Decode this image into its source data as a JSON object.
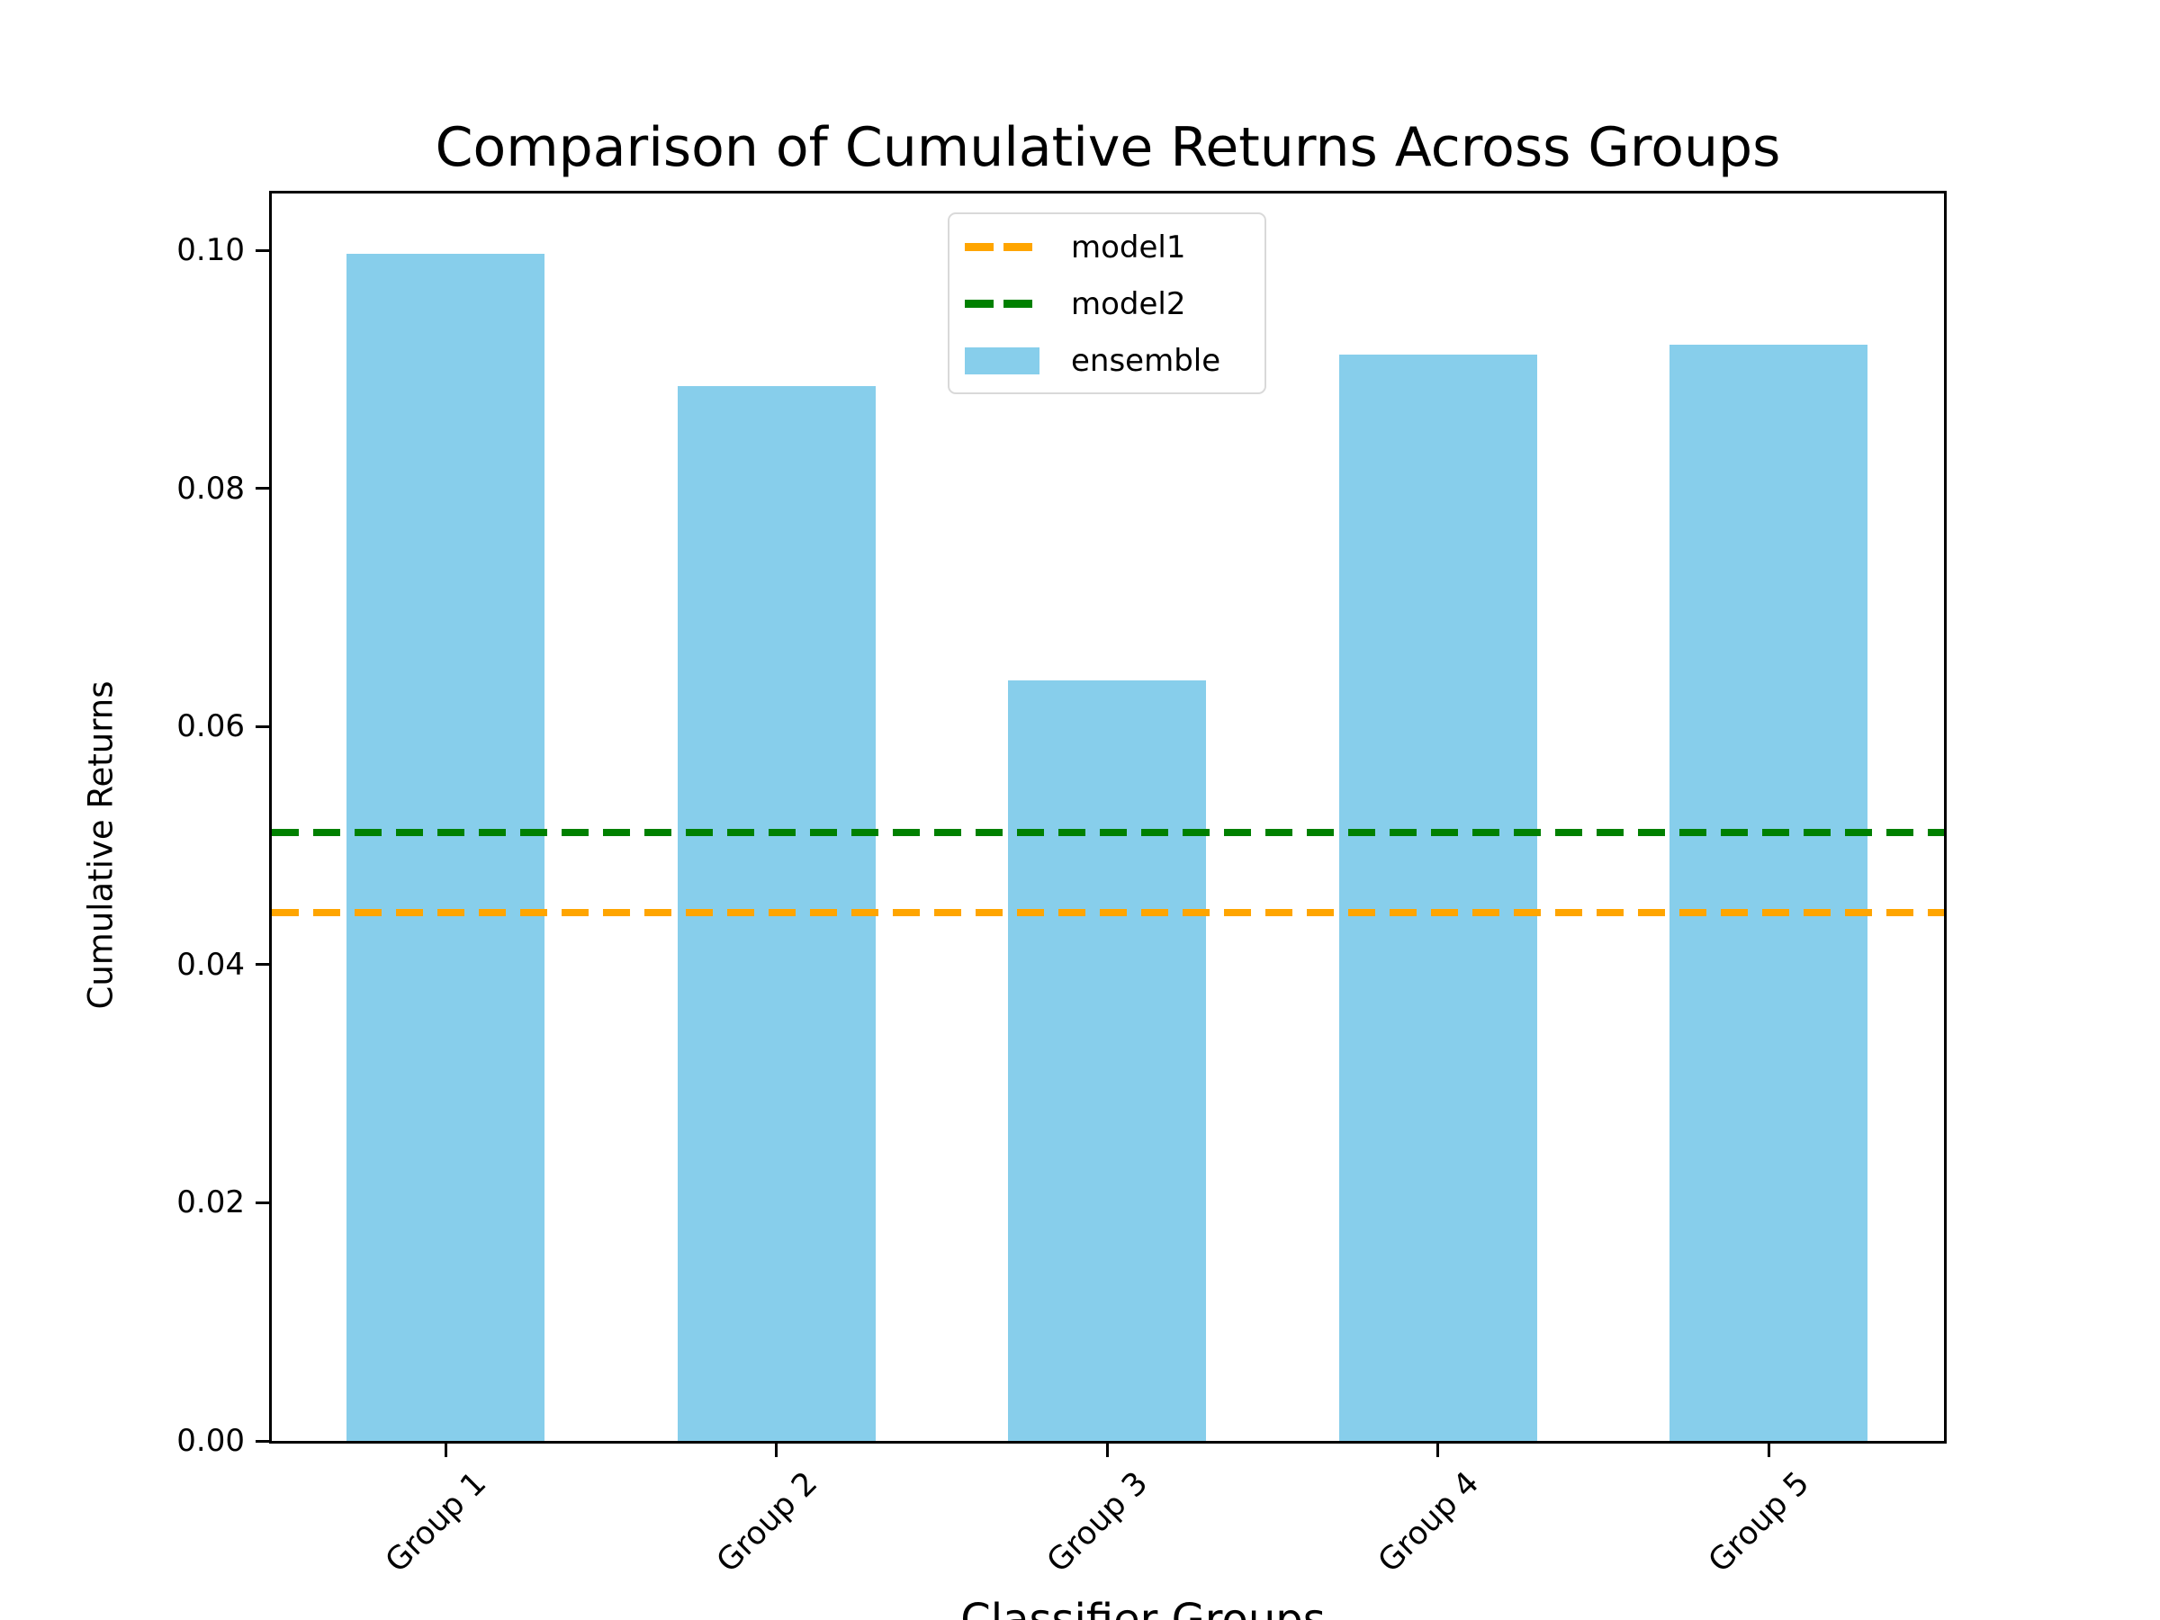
{
  "chart_data": {
    "type": "bar",
    "title": "Comparison of Cumulative Returns Across Groups",
    "xlabel": "Classifier Groups",
    "ylabel": "Cumulative Returns",
    "categories": [
      "Group 1",
      "Group 2",
      "Group 3",
      "Group 4",
      "Group 5"
    ],
    "series": [
      {
        "name": "ensemble",
        "type": "bar",
        "color": "#87CEEB",
        "values": [
          0.0997,
          0.0886,
          0.0639,
          0.0913,
          0.0921
        ]
      }
    ],
    "hlines": [
      {
        "name": "model1",
        "value": 0.0444,
        "color": "#FFA500",
        "linestyle": "dashed"
      },
      {
        "name": "model2",
        "value": 0.0511,
        "color": "#008000",
        "linestyle": "dashed"
      }
    ],
    "ylim": [
      0,
      0.1048
    ],
    "yticks": [
      0.0,
      0.02,
      0.04,
      0.06,
      0.08,
      0.1
    ],
    "ytick_labels": [
      "0.00",
      "0.02",
      "0.04",
      "0.06",
      "0.08",
      "0.10"
    ],
    "xtick_rotation": 45,
    "grid": false,
    "legend": {
      "position": "upper center",
      "items": [
        {
          "label": "model1",
          "handle": "dashed-line",
          "color": "#FFA500"
        },
        {
          "label": "model2",
          "handle": "dashed-line",
          "color": "#008000"
        },
        {
          "label": "ensemble",
          "handle": "patch",
          "color": "#87CEEB"
        }
      ]
    }
  }
}
